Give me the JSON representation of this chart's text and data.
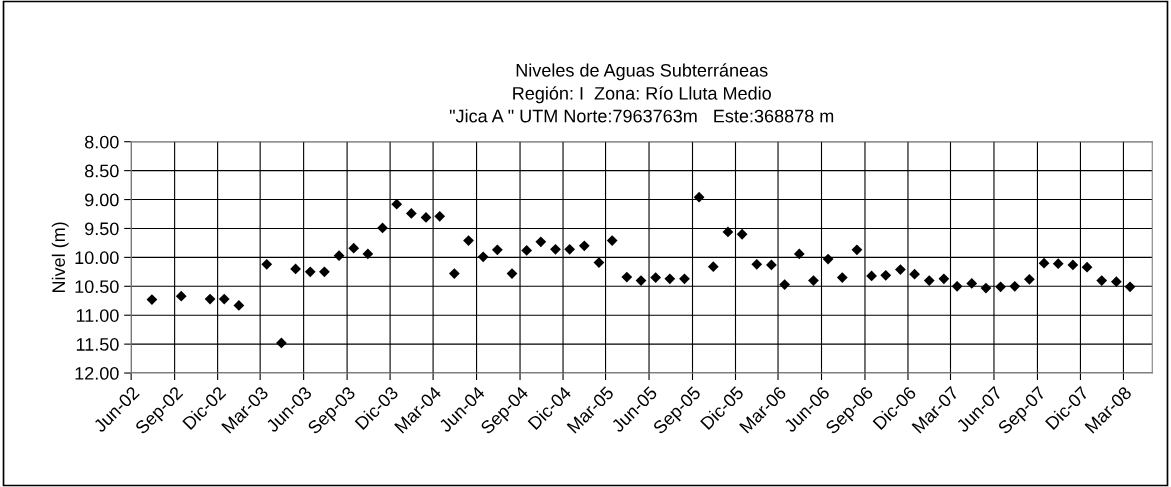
{
  "chart_data": {
    "type": "scatter",
    "title": "Niveles de Aguas Subterráneas\nRegión: I  Zona: Río Lluta Medio\n\"Jica A \" UTM Norte:7963763m   Este:368878 m",
    "ylabel": "Nivel (m)",
    "x": [
      "2002-07-15",
      "2002-09-15",
      "2002-11-15",
      "2002-12-15",
      "2003-01-15",
      "2003-03-15",
      "2003-04-15",
      "2003-05-15",
      "2003-06-15",
      "2003-07-15",
      "2003-08-15",
      "2003-09-15",
      "2003-10-15",
      "2003-11-15",
      "2003-12-15",
      "2004-01-15",
      "2004-02-15",
      "2004-03-15",
      "2004-04-15",
      "2004-05-15",
      "2004-06-15",
      "2004-07-15",
      "2004-08-15",
      "2004-09-15",
      "2004-10-15",
      "2004-11-15",
      "2004-12-15",
      "2005-01-15",
      "2005-02-15",
      "2005-03-15",
      "2005-04-15",
      "2005-05-15",
      "2005-06-15",
      "2005-07-15",
      "2005-08-15",
      "2005-09-15",
      "2005-10-15",
      "2005-11-15",
      "2005-12-15",
      "2006-01-15",
      "2006-02-15",
      "2006-03-15",
      "2006-04-15",
      "2006-05-15",
      "2006-06-15",
      "2006-07-15",
      "2006-08-15",
      "2006-09-15",
      "2006-10-15",
      "2006-11-15",
      "2006-12-15",
      "2007-01-15",
      "2007-02-15",
      "2007-03-15",
      "2007-04-15",
      "2007-05-15",
      "2007-06-15",
      "2007-07-15",
      "2007-08-15",
      "2007-09-15",
      "2007-10-15",
      "2007-11-15",
      "2007-12-15",
      "2008-01-15",
      "2008-02-15",
      "2008-03-15"
    ],
    "series": [
      {
        "color": "#000000",
        "values": [
          10.73,
          10.67,
          10.72,
          10.72,
          10.83,
          10.12,
          11.48,
          10.2,
          10.25,
          10.25,
          9.97,
          9.84,
          9.94,
          9.49,
          9.08,
          9.24,
          9.31,
          9.29,
          10.28,
          9.71,
          9.99,
          9.87,
          10.28,
          9.88,
          9.73,
          9.86,
          9.86,
          9.8,
          10.09,
          9.71,
          10.34,
          10.4,
          10.35,
          10.37,
          10.37,
          8.96,
          10.16,
          9.56,
          9.6,
          10.12,
          10.13,
          10.47,
          9.94,
          10.4,
          10.03,
          10.35,
          9.87,
          10.32,
          10.31,
          10.21,
          10.29,
          10.4,
          10.37,
          10.5,
          10.45,
          10.53,
          10.51,
          10.5,
          10.38,
          10.1,
          10.11,
          10.13,
          10.17,
          10.4,
          10.42,
          10.51
        ]
      }
    ],
    "xlim": [
      "2002-06-01",
      "2008-05-01"
    ],
    "xticks": [
      {
        "value": "2002-06-01",
        "label": "Jun-02"
      },
      {
        "value": "2002-09-01",
        "label": "Sep-02"
      },
      {
        "value": "2002-12-01",
        "label": "Dic-02"
      },
      {
        "value": "2003-03-01",
        "label": "Mar-03"
      },
      {
        "value": "2003-06-01",
        "label": "Jun-03"
      },
      {
        "value": "2003-09-01",
        "label": "Sep-03"
      },
      {
        "value": "2003-12-01",
        "label": "Dic-03"
      },
      {
        "value": "2004-03-01",
        "label": "Mar-04"
      },
      {
        "value": "2004-06-01",
        "label": "Jun-04"
      },
      {
        "value": "2004-09-01",
        "label": "Sep-04"
      },
      {
        "value": "2004-12-01",
        "label": "Dic-04"
      },
      {
        "value": "2005-03-01",
        "label": "Mar-05"
      },
      {
        "value": "2005-06-01",
        "label": "Jun-05"
      },
      {
        "value": "2005-09-01",
        "label": "Sep-05"
      },
      {
        "value": "2005-12-01",
        "label": "Dic-05"
      },
      {
        "value": "2006-03-01",
        "label": "Mar-06"
      },
      {
        "value": "2006-06-01",
        "label": "Jun-06"
      },
      {
        "value": "2006-09-01",
        "label": "Sep-06"
      },
      {
        "value": "2006-12-01",
        "label": "Dic-06"
      },
      {
        "value": "2007-03-01",
        "label": "Mar-07"
      },
      {
        "value": "2007-06-01",
        "label": "Jun-07"
      },
      {
        "value": "2007-09-01",
        "label": "Sep-07"
      },
      {
        "value": "2007-12-01",
        "label": "Dic-07"
      },
      {
        "value": "2008-03-01",
        "label": "Mar-08"
      }
    ],
    "ylim": [
      12,
      8
    ],
    "yticks": [
      {
        "value": 8,
        "label": "8.00"
      },
      {
        "value": 8.5,
        "label": "8.50"
      },
      {
        "value": 9,
        "label": "9.00"
      },
      {
        "value": 9.5,
        "label": "9.50"
      },
      {
        "value": 10,
        "label": "10.00"
      },
      {
        "value": 10.5,
        "label": "10.50"
      },
      {
        "value": 11,
        "label": "11.00"
      },
      {
        "value": 11.5,
        "label": "11.50"
      },
      {
        "value": 12,
        "label": "12.00"
      }
    ],
    "grid": true,
    "marker": "diamond"
  }
}
